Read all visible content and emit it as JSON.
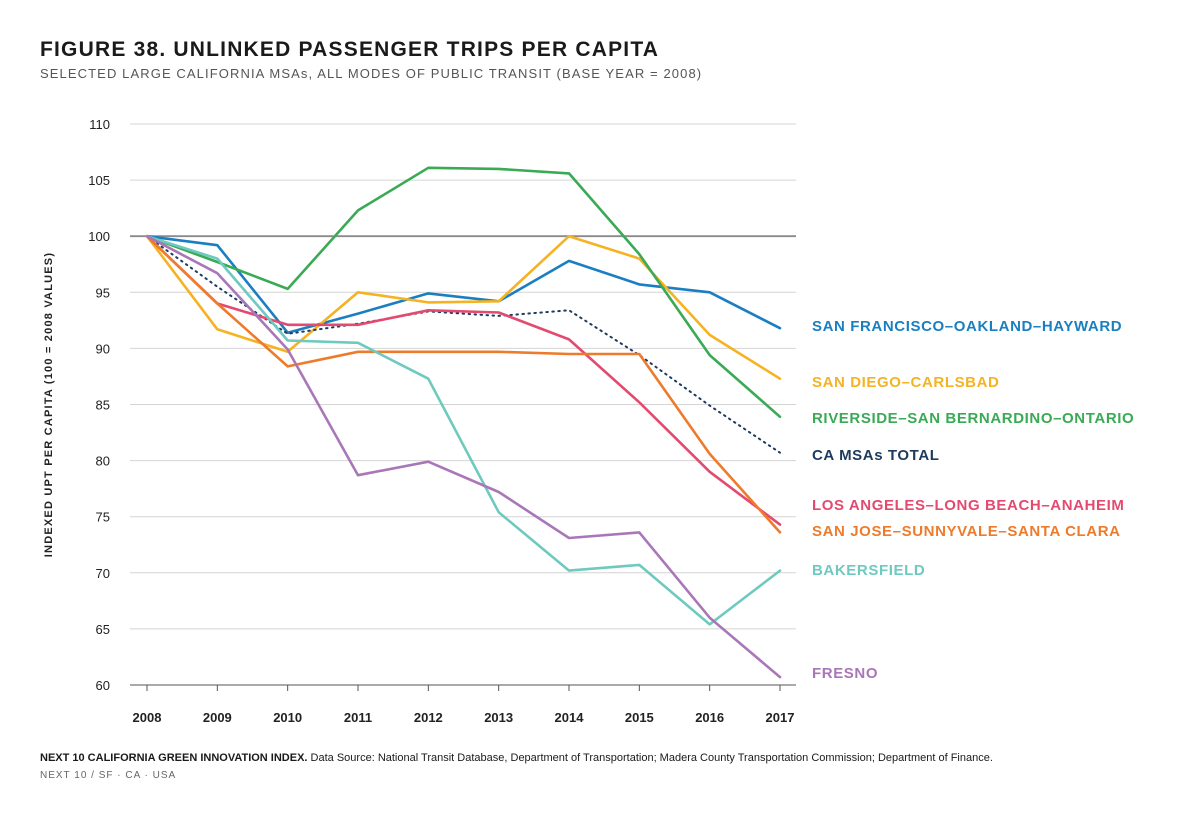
{
  "header": {
    "title": "FIGURE 38. UNLINKED PASSENGER TRIPS PER CAPITA",
    "subtitle": "SELECTED LARGE CALIFORNIA MSAs, ALL MODES OF PUBLIC TRANSIT (BASE YEAR = 2008)"
  },
  "footer": {
    "source_label": "NEXT 10 CALIFORNIA GREEN INNOVATION INDEX.",
    "source_text": " Data Source: National Transit Database, Department of Transportation; Madera County Transportation Commission; Department of Finance.",
    "credit": "NEXT 10  /  SF · CA · USA"
  },
  "chart_data": {
    "type": "line",
    "ylabel": "INDEXED UPT PER CAPITA (100 = 2008 VALUES)",
    "xlabel": "",
    "ylim": [
      60,
      110
    ],
    "yticks": [
      60,
      65,
      70,
      75,
      80,
      85,
      90,
      95,
      100,
      105,
      110
    ],
    "categories": [
      "2008",
      "2009",
      "2010",
      "2011",
      "2012",
      "2013",
      "2014",
      "2015",
      "2016",
      "2017"
    ],
    "reference_line": 100,
    "grid": true,
    "legend": "right, labels at line ends",
    "series": [
      {
        "name": "SAN FRANCISCO–OAKLAND–HAYWARD",
        "color": "#1a7fc1",
        "dash": false,
        "values": [
          100,
          99.2,
          91.4,
          93.1,
          94.9,
          94.2,
          97.8,
          95.7,
          95.0,
          91.8
        ]
      },
      {
        "name": "SAN DIEGO–CARLSBAD",
        "color": "#f5b323",
        "dash": false,
        "values": [
          100,
          91.7,
          89.7,
          95.0,
          94.1,
          94.2,
          100.0,
          98.0,
          91.2,
          87.3
        ]
      },
      {
        "name": "RIVERSIDE–SAN BERNARDINO–ONTARIO",
        "color": "#3aaa55",
        "dash": false,
        "values": [
          100,
          97.7,
          95.3,
          102.3,
          106.1,
          106.0,
          105.6,
          98.4,
          89.4,
          83.9
        ]
      },
      {
        "name": "CA MSAs TOTAL",
        "color": "#1d3a5f",
        "dash": true,
        "values": [
          100,
          95.5,
          91.3,
          92.2,
          93.3,
          92.9,
          93.4,
          89.4,
          84.9,
          80.7
        ]
      },
      {
        "name": "LOS ANGELES–LONG BEACH–ANAHEIM",
        "color": "#e34a6f",
        "dash": false,
        "values": [
          100,
          94.0,
          92.1,
          92.1,
          93.4,
          93.2,
          90.8,
          85.2,
          79.0,
          74.3
        ]
      },
      {
        "name": "SAN JOSE–SUNNYVALE–SANTA CLARA",
        "color": "#ee7b2c",
        "dash": false,
        "values": [
          100,
          94.0,
          88.4,
          89.7,
          89.7,
          89.7,
          89.5,
          89.5,
          80.6,
          73.6
        ]
      },
      {
        "name": "BAKERSFIELD",
        "color": "#6ec9bf",
        "dash": false,
        "values": [
          100,
          98.0,
          90.7,
          90.5,
          87.3,
          75.4,
          70.2,
          70.7,
          65.4,
          70.2
        ]
      },
      {
        "name": "FRESNO",
        "color": "#a977b7",
        "dash": false,
        "values": [
          100,
          96.7,
          89.9,
          78.7,
          79.9,
          77.2,
          73.1,
          73.6,
          66.0,
          60.7
        ]
      }
    ]
  }
}
